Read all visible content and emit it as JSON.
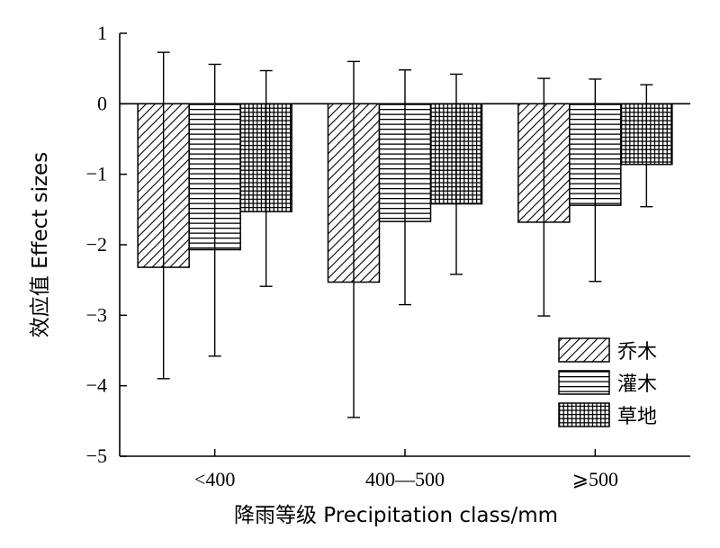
{
  "chart_data": {
    "type": "bar",
    "categories": [
      "<400",
      "400—500",
      "⩾500"
    ],
    "series": [
      {
        "name": "乔木",
        "pattern": "diagonal",
        "values": [
          -2.32,
          -2.53,
          -1.68
        ],
        "err_low": [
          -3.9,
          -4.45,
          -3.01
        ],
        "err_high": [
          0.73,
          0.6,
          0.36
        ]
      },
      {
        "name": "灌木",
        "pattern": "horizontal",
        "values": [
          -2.07,
          -1.67,
          -1.44
        ],
        "err_low": [
          -3.58,
          -2.85,
          -2.52
        ],
        "err_high": [
          0.56,
          0.48,
          0.35
        ]
      },
      {
        "name": "草地",
        "pattern": "grid",
        "values": [
          -1.53,
          -1.42,
          -0.86
        ],
        "err_low": [
          -2.59,
          -2.42,
          -1.46
        ],
        "err_high": [
          0.47,
          0.42,
          0.27
        ]
      }
    ],
    "xlabel": "降雨等级 Precipitation class/mm",
    "ylabel": "效应值 Effect sizes",
    "ylim": [
      -5,
      1
    ],
    "yticks": [
      "1",
      "0",
      "−1",
      "−2",
      "−3",
      "−4",
      "−5"
    ],
    "zero_line": true,
    "grid": false,
    "legend_position": "bottom-right",
    "colors": {
      "stroke": "#000000",
      "background": "#ffffff"
    }
  }
}
